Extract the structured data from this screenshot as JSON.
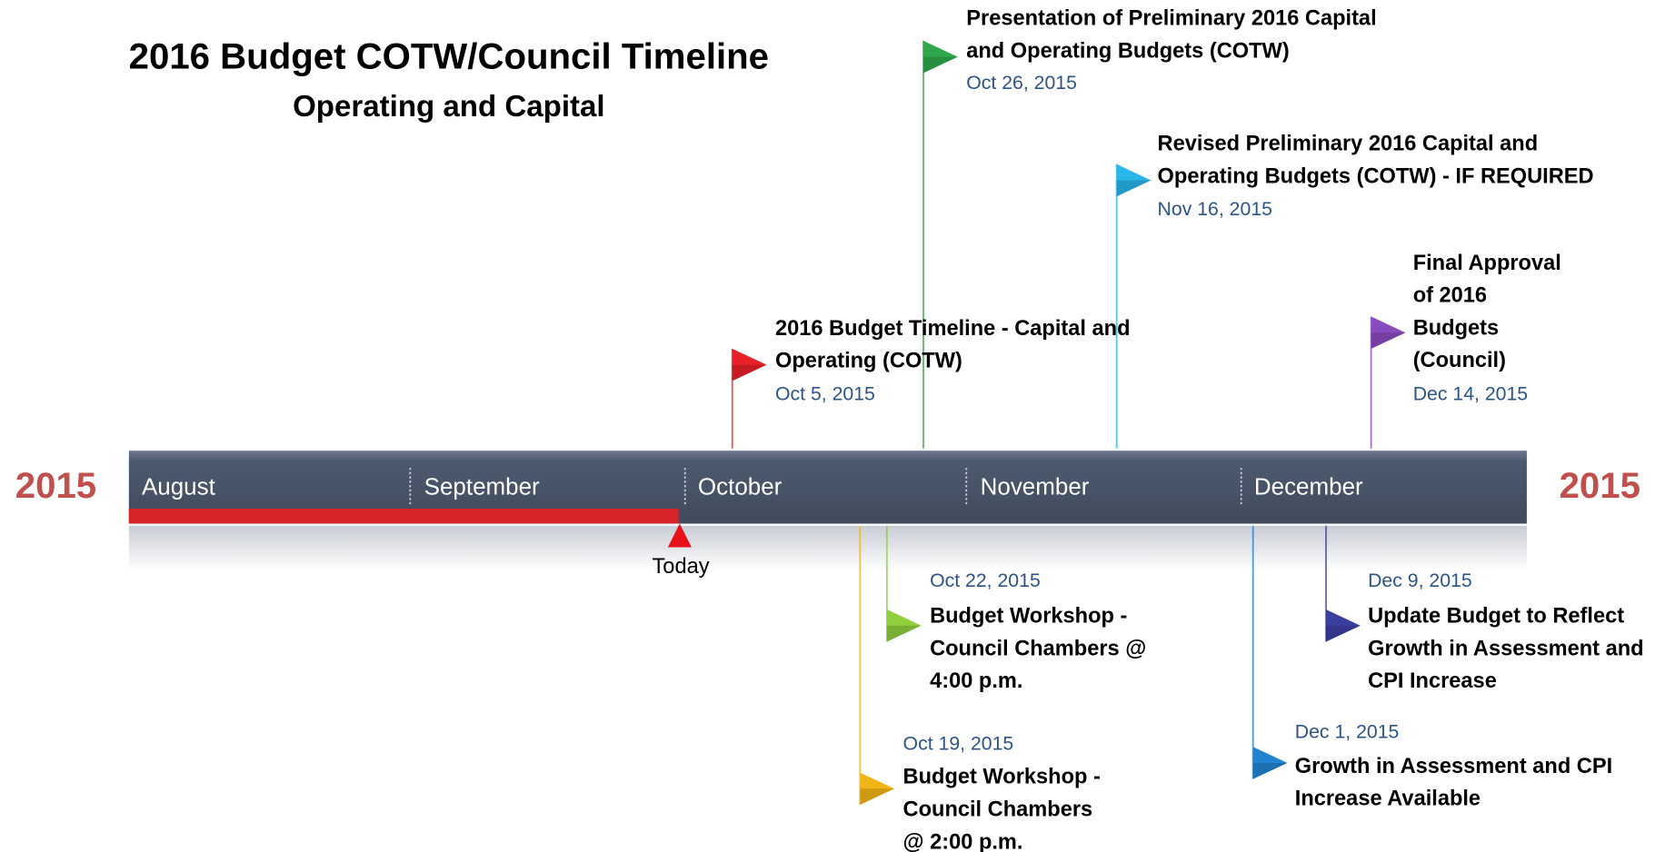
{
  "header": {
    "title": "2016 Budget COTW/Council Timeline",
    "subtitle": "Operating and Capital"
  },
  "timeline": {
    "year_left": "2015",
    "year_right": "2015",
    "months": [
      "August",
      "September",
      "October",
      "November",
      "December"
    ],
    "today": "Today"
  },
  "events": [
    {
      "lines": [
        "Presentation of Preliminary 2016 Capital",
        "and Operating Budgets (COTW)"
      ],
      "date": "Oct 26, 2015",
      "color": "#2ea84a"
    },
    {
      "lines": [
        "Revised Preliminary 2016 Capital and",
        "Operating Budgets (COTW) - IF REQUIRED"
      ],
      "date": "Nov 16, 2015",
      "color": "#29b6e8"
    },
    {
      "lines": [
        "Final Approval",
        "of 2016",
        "Budgets",
        "(Council)"
      ],
      "date": "Dec 14, 2015",
      "color": "#8a4bbf"
    },
    {
      "lines": [
        "2016 Budget Timeline - Capital and",
        "Operating (COTW)"
      ],
      "date": "Oct 5, 2015",
      "color": "#e8202a"
    },
    {
      "lines": [
        "Budget Workshop -",
        "Council Chambers @",
        "4:00 p.m."
      ],
      "date": "Oct 22, 2015",
      "color": "#8fce3c"
    },
    {
      "lines": [
        "Budget Workshop -",
        "Council Chambers",
        "@ 2:00 p.m."
      ],
      "date": "Oct 19, 2015",
      "color": "#f2b517"
    },
    {
      "lines": [
        "Update Budget to Reflect",
        "Growth in Assessment and",
        "CPI Increase"
      ],
      "date": "Dec 9, 2015",
      "color": "#3b3fa0"
    },
    {
      "lines": [
        "Growth in Assessment and CPI",
        "Increase Available"
      ],
      "date": "Dec 1, 2015",
      "color": "#2283d1"
    }
  ]
}
